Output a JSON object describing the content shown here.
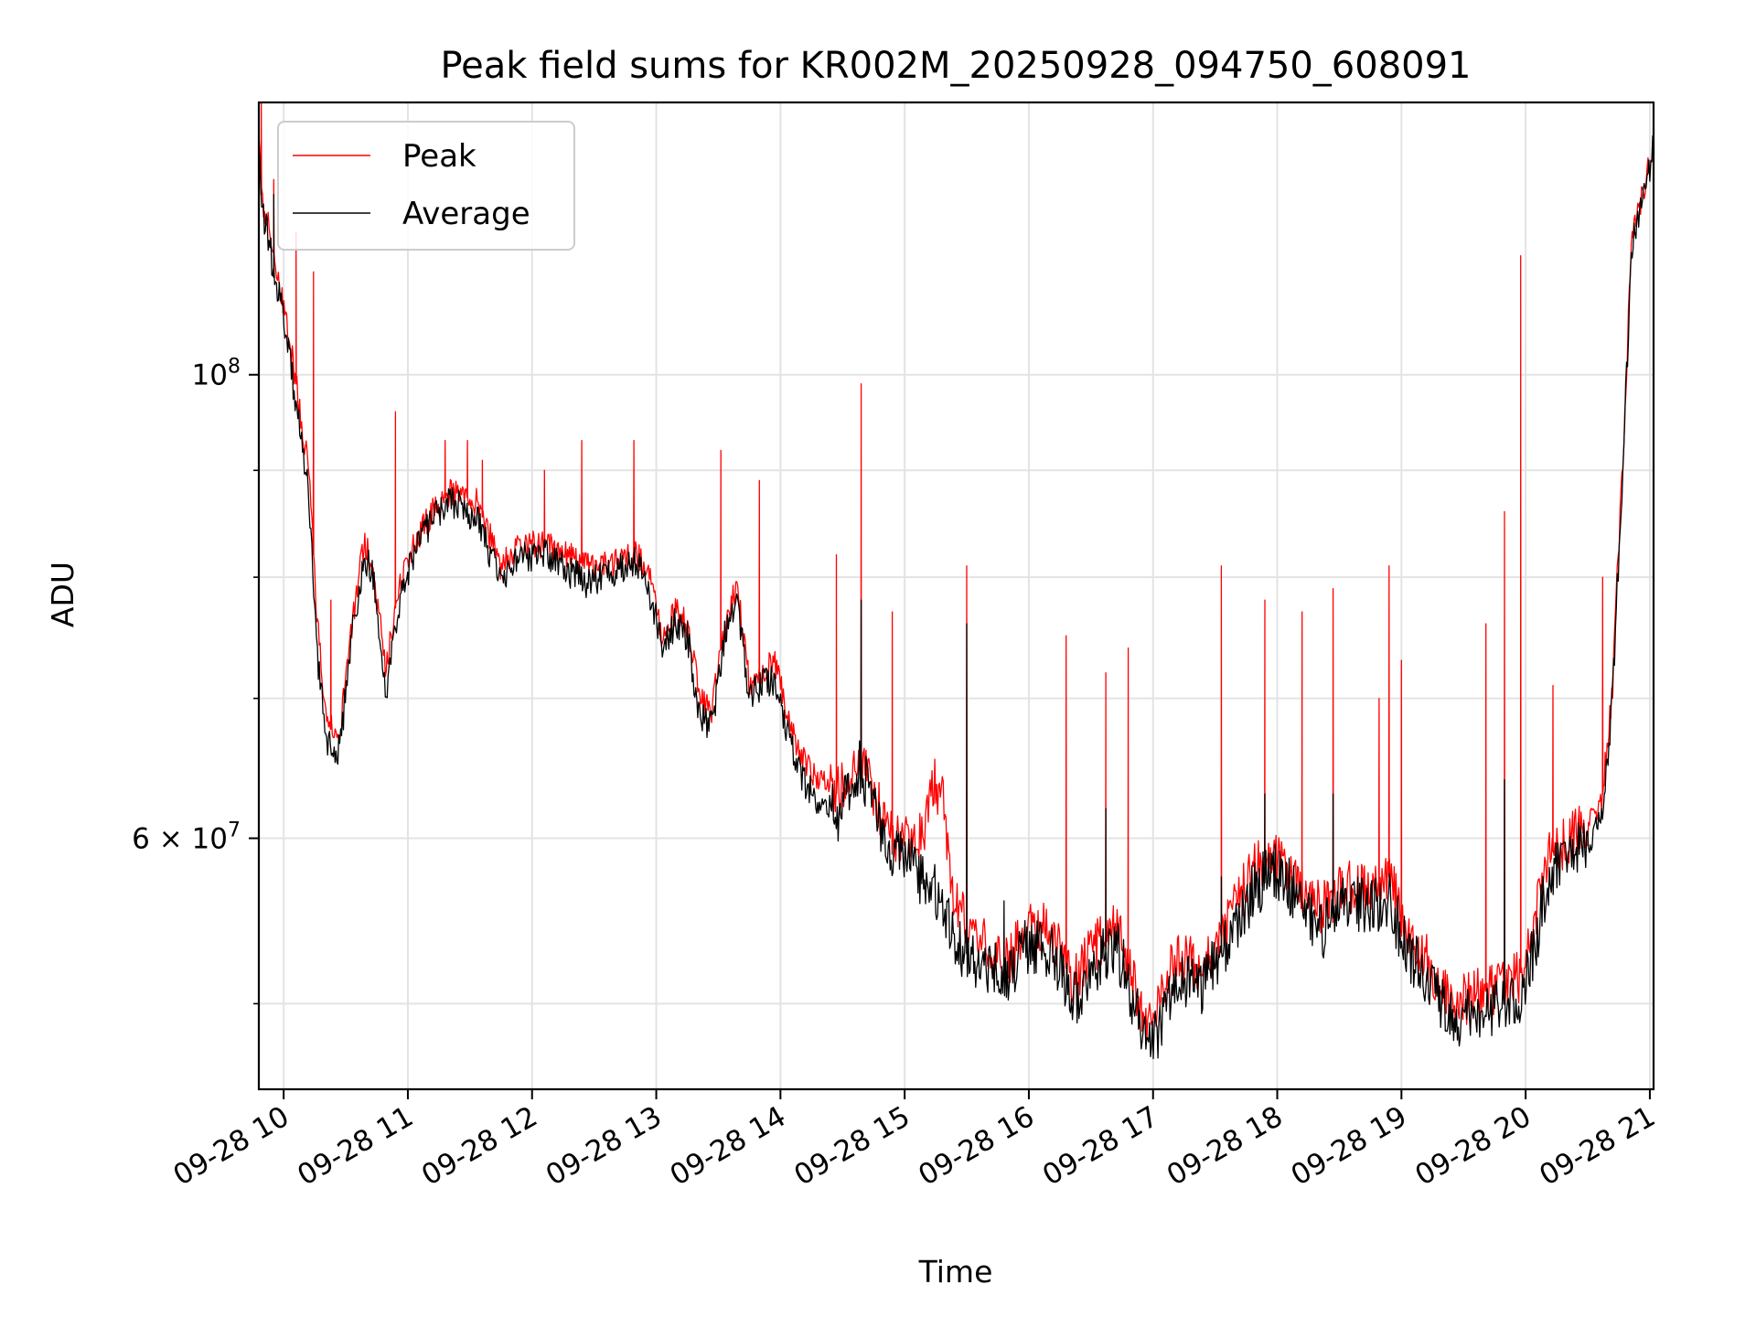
{
  "chart_data": {
    "type": "line",
    "title": "Peak field sums for KR002M_20250928_094750_608091",
    "xlabel": "Time",
    "ylabel": "ADU",
    "yscale": "log",
    "ylim": [
      45500000,
      135000000
    ],
    "xlim_hours": [
      9.8,
      21.03
    ],
    "grid": true,
    "legend_location": "upper left",
    "x_ticks": [
      {
        "hour": 10,
        "label": "09-28 10"
      },
      {
        "hour": 11,
        "label": "09-28 11"
      },
      {
        "hour": 12,
        "label": "09-28 12"
      },
      {
        "hour": 13,
        "label": "09-28 13"
      },
      {
        "hour": 14,
        "label": "09-28 14"
      },
      {
        "hour": 15,
        "label": "09-28 15"
      },
      {
        "hour": 16,
        "label": "09-28 16"
      },
      {
        "hour": 17,
        "label": "09-28 17"
      },
      {
        "hour": 18,
        "label": "09-28 18"
      },
      {
        "hour": 19,
        "label": "09-28 19"
      },
      {
        "hour": 20,
        "label": "09-28 20"
      },
      {
        "hour": 21,
        "label": "09-28 21"
      }
    ],
    "y_ticks_major": [
      {
        "value": 100000000,
        "base": "10",
        "exp": "8",
        "coef": ""
      },
      {
        "value": 60000000,
        "base": "10",
        "exp": "7",
        "coef": "6 × "
      }
    ],
    "y_ticks_minor": [
      50000000,
      70000000,
      80000000,
      90000000
    ],
    "series": [
      {
        "name": "Peak",
        "color": "#ff0000",
        "baseline": [
          [
            9.8,
            131000000
          ],
          [
            9.82,
            122000000
          ],
          [
            9.9,
            116000000
          ],
          [
            10.0,
            108000000
          ],
          [
            10.1,
            99000000
          ],
          [
            10.2,
            90000000
          ],
          [
            10.27,
            76000000
          ],
          [
            10.35,
            68000000
          ],
          [
            10.45,
            67000000
          ],
          [
            10.55,
            76000000
          ],
          [
            10.65,
            83000000
          ],
          [
            10.72,
            81000000
          ],
          [
            10.82,
            72000000
          ],
          [
            10.92,
            79000000
          ],
          [
            11.05,
            83000000
          ],
          [
            11.2,
            86000000
          ],
          [
            11.35,
            88000000
          ],
          [
            11.55,
            87000000
          ],
          [
            11.75,
            81000000
          ],
          [
            11.9,
            83000000
          ],
          [
            12.1,
            83000000
          ],
          [
            12.3,
            82000000
          ],
          [
            12.45,
            81000000
          ],
          [
            12.6,
            81000000
          ],
          [
            12.85,
            82000000
          ],
          [
            12.95,
            80000000
          ],
          [
            13.05,
            75000000
          ],
          [
            13.15,
            77000000
          ],
          [
            13.25,
            76000000
          ],
          [
            13.35,
            70000000
          ],
          [
            13.45,
            69000000
          ],
          [
            13.55,
            76000000
          ],
          [
            13.65,
            79000000
          ],
          [
            13.75,
            71000000
          ],
          [
            13.85,
            72000000
          ],
          [
            13.95,
            73000000
          ],
          [
            14.05,
            69000000
          ],
          [
            14.15,
            66000000
          ],
          [
            14.3,
            64000000
          ],
          [
            14.45,
            63000000
          ],
          [
            14.55,
            64000000
          ],
          [
            14.65,
            66000000
          ],
          [
            14.8,
            62000000
          ],
          [
            14.9,
            60000000
          ],
          [
            15.0,
            60000000
          ],
          [
            15.15,
            60000000
          ],
          [
            15.22,
            64000000
          ],
          [
            15.3,
            63000000
          ],
          [
            15.4,
            56000000
          ],
          [
            15.55,
            54000000
          ],
          [
            15.7,
            53000000
          ],
          [
            15.85,
            52500000
          ],
          [
            16.0,
            55000000
          ],
          [
            16.2,
            54000000
          ],
          [
            16.35,
            51000000
          ],
          [
            16.5,
            53000000
          ],
          [
            16.7,
            54500000
          ],
          [
            16.85,
            51000000
          ],
          [
            16.95,
            48500000
          ],
          [
            17.05,
            50000000
          ],
          [
            17.2,
            53000000
          ],
          [
            17.4,
            52000000
          ],
          [
            17.6,
            54500000
          ],
          [
            17.8,
            58000000
          ],
          [
            17.95,
            59000000
          ],
          [
            18.15,
            57500000
          ],
          [
            18.35,
            55500000
          ],
          [
            18.55,
            57000000
          ],
          [
            18.75,
            56500000
          ],
          [
            18.9,
            57500000
          ],
          [
            19.05,
            54000000
          ],
          [
            19.2,
            52500000
          ],
          [
            19.4,
            50000000
          ],
          [
            19.6,
            50500000
          ],
          [
            19.8,
            51000000
          ],
          [
            19.95,
            51500000
          ],
          [
            20.05,
            54000000
          ],
          [
            20.2,
            59000000
          ],
          [
            20.35,
            60000000
          ],
          [
            20.5,
            61000000
          ],
          [
            20.62,
            63000000
          ],
          [
            20.7,
            71000000
          ],
          [
            20.78,
            90000000
          ],
          [
            20.86,
            117000000
          ],
          [
            20.93,
            121000000
          ],
          [
            21.0,
            127000000
          ],
          [
            21.03,
            130000000
          ]
        ],
        "spikes": [
          [
            9.82,
            135000000
          ],
          [
            9.92,
            124000000
          ],
          [
            10.1,
            117000000
          ],
          [
            10.24,
            112000000
          ],
          [
            10.38,
            78000000
          ],
          [
            10.9,
            96000000
          ],
          [
            11.3,
            93000000
          ],
          [
            11.48,
            93000000
          ],
          [
            11.6,
            91000000
          ],
          [
            12.1,
            90000000
          ],
          [
            12.4,
            93000000
          ],
          [
            12.82,
            93000000
          ],
          [
            13.52,
            92000000
          ],
          [
            13.83,
            89000000
          ],
          [
            14.45,
            82000000
          ],
          [
            14.65,
            99000000
          ],
          [
            14.9,
            77000000
          ],
          [
            15.5,
            81000000
          ],
          [
            16.3,
            75000000
          ],
          [
            16.62,
            72000000
          ],
          [
            16.8,
            74000000
          ],
          [
            17.55,
            81000000
          ],
          [
            17.9,
            78000000
          ],
          [
            18.2,
            77000000
          ],
          [
            18.45,
            79000000
          ],
          [
            18.82,
            70000000
          ],
          [
            18.9,
            81000000
          ],
          [
            19.0,
            73000000
          ],
          [
            19.68,
            76000000
          ],
          [
            19.83,
            86000000
          ],
          [
            19.96,
            114000000
          ],
          [
            20.22,
            71000000
          ],
          [
            20.62,
            80000000
          ]
        ]
      },
      {
        "name": "Average",
        "color": "#000000",
        "baseline": [
          [
            9.8,
            128000000
          ],
          [
            9.82,
            121000000
          ],
          [
            9.9,
            114000000
          ],
          [
            10.0,
            106000000
          ],
          [
            10.1,
            97000000
          ],
          [
            10.2,
            88000000
          ],
          [
            10.27,
            73000000
          ],
          [
            10.35,
            67000000
          ],
          [
            10.45,
            66000000
          ],
          [
            10.55,
            75000000
          ],
          [
            10.65,
            82000000
          ],
          [
            10.72,
            80000000
          ],
          [
            10.82,
            70000000
          ],
          [
            10.92,
            77500000
          ],
          [
            11.05,
            82000000
          ],
          [
            11.2,
            85500000
          ],
          [
            11.35,
            87000000
          ],
          [
            11.55,
            85500000
          ],
          [
            11.75,
            79500000
          ],
          [
            11.9,
            82000000
          ],
          [
            12.1,
            82000000
          ],
          [
            12.3,
            80500000
          ],
          [
            12.45,
            79500000
          ],
          [
            12.6,
            80000000
          ],
          [
            12.85,
            81500000
          ],
          [
            12.95,
            78500000
          ],
          [
            13.05,
            74000000
          ],
          [
            13.15,
            76000000
          ],
          [
            13.25,
            75000000
          ],
          [
            13.35,
            68500000
          ],
          [
            13.45,
            68000000
          ],
          [
            13.55,
            75000000
          ],
          [
            13.65,
            78000000
          ],
          [
            13.75,
            70000000
          ],
          [
            13.85,
            71000000
          ],
          [
            13.95,
            71500000
          ],
          [
            14.05,
            67500000
          ],
          [
            14.15,
            64500000
          ],
          [
            14.3,
            62500000
          ],
          [
            14.45,
            61500000
          ],
          [
            14.55,
            63000000
          ],
          [
            14.65,
            65000000
          ],
          [
            14.8,
            61000000
          ],
          [
            14.9,
            59000000
          ],
          [
            15.0,
            58500000
          ],
          [
            15.15,
            57500000
          ],
          [
            15.22,
            57000000
          ],
          [
            15.3,
            56000000
          ],
          [
            15.4,
            53500000
          ],
          [
            15.55,
            52500000
          ],
          [
            15.7,
            52000000
          ],
          [
            15.85,
            51500000
          ],
          [
            16.0,
            53500000
          ],
          [
            16.2,
            53000000
          ],
          [
            16.35,
            50000000
          ],
          [
            16.5,
            52000000
          ],
          [
            16.7,
            53500000
          ],
          [
            16.85,
            50000000
          ],
          [
            16.95,
            47500000
          ],
          [
            17.05,
            48500000
          ],
          [
            17.2,
            51500000
          ],
          [
            17.4,
            51000000
          ],
          [
            17.6,
            53500000
          ],
          [
            17.8,
            56500000
          ],
          [
            17.95,
            58000000
          ],
          [
            18.15,
            56500000
          ],
          [
            18.35,
            54000000
          ],
          [
            18.55,
            56000000
          ],
          [
            18.75,
            55500000
          ],
          [
            18.9,
            56000000
          ],
          [
            19.05,
            53000000
          ],
          [
            19.2,
            51500000
          ],
          [
            19.4,
            49000000
          ],
          [
            19.6,
            49500000
          ],
          [
            19.8,
            50000000
          ],
          [
            19.95,
            50500000
          ],
          [
            20.05,
            52500000
          ],
          [
            20.2,
            58000000
          ],
          [
            20.35,
            59000000
          ],
          [
            20.5,
            59500000
          ],
          [
            20.62,
            61500000
          ],
          [
            20.7,
            70000000
          ],
          [
            20.78,
            89000000
          ],
          [
            20.86,
            116000000
          ],
          [
            20.93,
            120000000
          ],
          [
            21.0,
            126000000
          ],
          [
            21.03,
            129000000
          ]
        ],
        "spikes": [
          [
            9.92,
            122000000
          ],
          [
            14.65,
            78000000
          ],
          [
            15.5,
            76000000
          ],
          [
            15.8,
            56000000
          ],
          [
            16.62,
            62000000
          ],
          [
            17.55,
            57500000
          ],
          [
            17.9,
            63000000
          ],
          [
            18.45,
            63000000
          ],
          [
            19.83,
            64000000
          ]
        ]
      }
    ]
  }
}
